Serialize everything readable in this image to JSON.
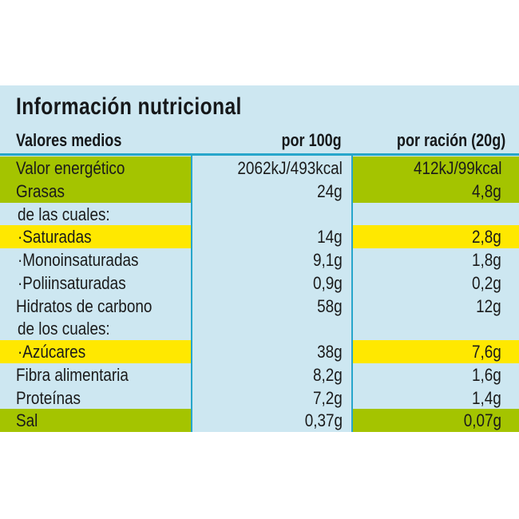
{
  "title": "Información nutricional",
  "header": {
    "label": "Valores medios",
    "col1": "por 100g",
    "col2": "por ración (20g)"
  },
  "colors": {
    "panel_bg": "#cde7f1",
    "highlight_green": "#a4c400",
    "highlight_yellow": "#ffe800",
    "border_cyan": "#27a6cb",
    "text": "#1a1a1a"
  },
  "rows": [
    {
      "label": "Valor energético",
      "per100": "2062kJ/493kcal",
      "perServing": "412kJ/99kcal",
      "highlight": "green"
    },
    {
      "label": "Grasas",
      "per100": "24g",
      "perServing": "4,8g",
      "highlight": "green"
    },
    {
      "label": "de las cuales:",
      "per100": "",
      "perServing": "",
      "highlight": "none"
    },
    {
      "label": "·Saturadas",
      "per100": "14g",
      "perServing": "2,8g",
      "highlight": "yellow"
    },
    {
      "label": "·Monoinsaturadas",
      "per100": "9,1g",
      "perServing": "1,8g",
      "highlight": "none"
    },
    {
      "label": "·Poliinsaturadas",
      "per100": "0,9g",
      "perServing": "0,2g",
      "highlight": "none"
    },
    {
      "label": "Hidratos de carbono",
      "per100": "58g",
      "perServing": "12g",
      "highlight": "none"
    },
    {
      "label": "de los cuales:",
      "per100": "",
      "perServing": "",
      "highlight": "none"
    },
    {
      "label": "·Azúcares",
      "per100": "38g",
      "perServing": "7,6g",
      "highlight": "yellow"
    },
    {
      "label": "Fibra alimentaria",
      "per100": "8,2g",
      "perServing": "1,6g",
      "highlight": "none"
    },
    {
      "label": "Proteínas",
      "per100": "7,2g",
      "perServing": "1,4g",
      "highlight": "none"
    },
    {
      "label": "Sal",
      "per100": "0,37g",
      "perServing": "0,07g",
      "highlight": "green"
    }
  ]
}
